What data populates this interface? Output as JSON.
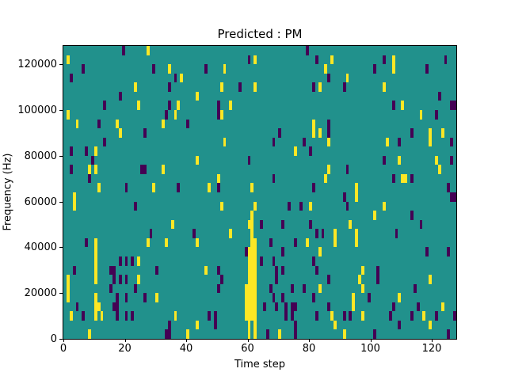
{
  "figure": {
    "background": "#ffffff",
    "text_color": "#000000"
  },
  "chart_data": {
    "type": "heatmap",
    "title": "Predicted : PM",
    "xlabel": "Time step",
    "ylabel": "Frequency (Hz)",
    "x_range": [
      0,
      128
    ],
    "y_range": [
      0,
      128000
    ],
    "x_ticks": [
      0,
      20,
      40,
      60,
      80,
      100,
      120
    ],
    "y_ticks": [
      0,
      20000,
      40000,
      60000,
      80000,
      100000,
      120000
    ],
    "grid_rows": 32,
    "grid_cols": 128,
    "legend": "none",
    "grid_lines": false,
    "colors": {
      "background": "#21918c",
      "p": "#440154",
      "y": "#fde725"
    },
    "color_meaning": {
      "background": "mid value (teal)",
      "p": "low value (dark purple)",
      "y": "high value (yellow)"
    },
    "cells": [
      [
        0,
        19,
        "p"
      ],
      [
        0,
        27,
        "y"
      ],
      [
        0,
        79,
        "p"
      ],
      [
        1,
        1,
        "y"
      ],
      [
        1,
        60,
        "p"
      ],
      [
        1,
        62,
        "y"
      ],
      [
        1,
        82,
        "p"
      ],
      [
        1,
        87,
        "y"
      ],
      [
        1,
        104,
        "p"
      ],
      [
        1,
        107,
        "y"
      ],
      [
        1,
        124,
        "p"
      ],
      [
        2,
        6,
        "p"
      ],
      [
        2,
        29,
        "p"
      ],
      [
        2,
        34,
        "y"
      ],
      [
        2,
        46,
        "p"
      ],
      [
        2,
        52,
        "y"
      ],
      [
        2,
        85,
        "y"
      ],
      [
        2,
        101,
        "p"
      ],
      [
        2,
        107,
        "y"
      ],
      [
        2,
        118,
        "p"
      ],
      [
        3,
        2,
        "p"
      ],
      [
        3,
        36,
        "p"
      ],
      [
        3,
        38,
        "y"
      ],
      [
        3,
        86,
        "p"
      ],
      [
        3,
        92,
        "y"
      ],
      [
        4,
        23,
        "y"
      ],
      [
        4,
        34,
        "p"
      ],
      [
        4,
        51,
        "y"
      ],
      [
        4,
        57,
        "p"
      ],
      [
        4,
        62,
        "y"
      ],
      [
        4,
        81,
        "p"
      ],
      [
        4,
        83,
        "y"
      ],
      [
        4,
        91,
        "p"
      ],
      [
        4,
        104,
        "y"
      ],
      [
        5,
        18,
        "p"
      ],
      [
        5,
        43,
        "y"
      ],
      [
        5,
        122,
        "p"
      ],
      [
        6,
        13,
        "p"
      ],
      [
        6,
        24,
        "y"
      ],
      [
        6,
        34,
        "p"
      ],
      [
        6,
        37,
        "y"
      ],
      [
        6,
        50,
        "p"
      ],
      [
        6,
        54,
        "y"
      ],
      [
        6,
        107,
        "p"
      ],
      [
        6,
        110,
        "y"
      ],
      [
        6,
        126,
        "p"
      ],
      [
        6,
        127,
        "p"
      ],
      [
        7,
        1,
        "y"
      ],
      [
        7,
        33,
        "p"
      ],
      [
        7,
        36,
        "y"
      ],
      [
        7,
        50,
        "p"
      ],
      [
        7,
        51,
        "y"
      ],
      [
        7,
        116,
        "y"
      ],
      [
        7,
        121,
        "p"
      ],
      [
        8,
        4,
        "y"
      ],
      [
        8,
        11,
        "p"
      ],
      [
        8,
        17,
        "y"
      ],
      [
        8,
        32,
        "y"
      ],
      [
        8,
        40,
        "p"
      ],
      [
        8,
        81,
        "y"
      ],
      [
        8,
        86,
        "p"
      ],
      [
        9,
        18,
        "y"
      ],
      [
        9,
        26,
        "p"
      ],
      [
        9,
        70,
        "p"
      ],
      [
        9,
        81,
        "y"
      ],
      [
        9,
        83,
        "y"
      ],
      [
        9,
        86,
        "p"
      ],
      [
        9,
        113,
        "p"
      ],
      [
        9,
        119,
        "y"
      ],
      [
        9,
        123,
        "y"
      ],
      [
        10,
        13,
        "p"
      ],
      [
        10,
        52,
        "y"
      ],
      [
        10,
        68,
        "p"
      ],
      [
        10,
        78,
        "p"
      ],
      [
        10,
        86,
        "y"
      ],
      [
        10,
        105,
        "y"
      ],
      [
        10,
        109,
        "p"
      ],
      [
        10,
        119,
        "y"
      ],
      [
        10,
        126,
        "p"
      ],
      [
        11,
        2,
        "p"
      ],
      [
        11,
        7,
        "p"
      ],
      [
        11,
        10,
        "y"
      ],
      [
        11,
        75,
        "y"
      ],
      [
        11,
        80,
        "p"
      ],
      [
        12,
        9,
        "p"
      ],
      [
        12,
        43,
        "y"
      ],
      [
        12,
        60,
        "p"
      ],
      [
        12,
        104,
        "p"
      ],
      [
        12,
        109,
        "y"
      ],
      [
        12,
        121,
        "y"
      ],
      [
        12,
        126,
        "p"
      ],
      [
        13,
        2,
        "p"
      ],
      [
        13,
        8,
        "y"
      ],
      [
        13,
        10,
        "y"
      ],
      [
        13,
        25,
        "p"
      ],
      [
        13,
        26,
        "p"
      ],
      [
        13,
        32,
        "y"
      ],
      [
        13,
        86,
        "y"
      ],
      [
        13,
        92,
        "p"
      ],
      [
        13,
        122,
        "y"
      ],
      [
        14,
        8,
        "p"
      ],
      [
        14,
        50,
        "y"
      ],
      [
        14,
        68,
        "p"
      ],
      [
        14,
        85,
        "y"
      ],
      [
        14,
        107,
        "p"
      ],
      [
        14,
        110,
        "y"
      ],
      [
        14,
        111,
        "y"
      ],
      [
        14,
        113,
        "p"
      ],
      [
        15,
        11,
        "y"
      ],
      [
        15,
        20,
        "p"
      ],
      [
        15,
        29,
        "y"
      ],
      [
        15,
        37,
        "p"
      ],
      [
        15,
        47,
        "y"
      ],
      [
        15,
        50,
        "p"
      ],
      [
        15,
        61,
        "y"
      ],
      [
        15,
        81,
        "p"
      ],
      [
        15,
        95,
        "y"
      ],
      [
        15,
        125,
        "p"
      ],
      [
        16,
        3,
        "y"
      ],
      [
        16,
        91,
        "p"
      ],
      [
        16,
        95,
        "y"
      ],
      [
        16,
        126,
        "p"
      ],
      [
        16,
        127,
        "p"
      ],
      [
        17,
        3,
        "y"
      ],
      [
        17,
        23,
        "p"
      ],
      [
        17,
        51,
        "y"
      ],
      [
        17,
        62,
        "y"
      ],
      [
        17,
        73,
        "p"
      ],
      [
        17,
        77,
        "p"
      ],
      [
        17,
        80,
        "y"
      ],
      [
        17,
        92,
        "p"
      ],
      [
        17,
        104,
        "y"
      ],
      [
        18,
        61,
        "y"
      ],
      [
        18,
        101,
        "y"
      ],
      [
        18,
        113,
        "p"
      ],
      [
        19,
        35,
        "y"
      ],
      [
        19,
        60,
        "y"
      ],
      [
        19,
        61,
        "y"
      ],
      [
        19,
        64,
        "p"
      ],
      [
        19,
        71,
        "p"
      ],
      [
        19,
        80,
        "p"
      ],
      [
        19,
        93,
        "y"
      ],
      [
        19,
        116,
        "p"
      ],
      [
        20,
        28,
        "p"
      ],
      [
        20,
        42,
        "p"
      ],
      [
        20,
        54,
        "y"
      ],
      [
        20,
        61,
        "y"
      ],
      [
        20,
        82,
        "p"
      ],
      [
        20,
        84,
        "p"
      ],
      [
        20,
        88,
        "y"
      ],
      [
        20,
        95,
        "y"
      ],
      [
        20,
        108,
        "p"
      ],
      [
        21,
        7,
        "p"
      ],
      [
        21,
        10,
        "y"
      ],
      [
        21,
        27,
        "y"
      ],
      [
        21,
        33,
        "y"
      ],
      [
        21,
        43,
        "y"
      ],
      [
        21,
        61,
        "y"
      ],
      [
        21,
        62,
        "y"
      ],
      [
        21,
        67,
        "p"
      ],
      [
        21,
        75,
        "p"
      ],
      [
        21,
        79,
        "y"
      ],
      [
        21,
        88,
        "y"
      ],
      [
        21,
        95,
        "y"
      ],
      [
        22,
        10,
        "y"
      ],
      [
        22,
        59,
        "p"
      ],
      [
        22,
        60,
        "y"
      ],
      [
        22,
        61,
        "y"
      ],
      [
        22,
        62,
        "y"
      ],
      [
        22,
        71,
        "p"
      ],
      [
        22,
        83,
        "y"
      ],
      [
        22,
        118,
        "p"
      ],
      [
        22,
        125,
        "p"
      ],
      [
        23,
        10,
        "y"
      ],
      [
        23,
        18,
        "p"
      ],
      [
        23,
        20,
        "p"
      ],
      [
        23,
        22,
        "p"
      ],
      [
        23,
        24,
        "y"
      ],
      [
        23,
        60,
        "y"
      ],
      [
        23,
        61,
        "y"
      ],
      [
        23,
        62,
        "y"
      ],
      [
        23,
        64,
        "p"
      ],
      [
        23,
        68,
        "p"
      ],
      [
        23,
        81,
        "p"
      ],
      [
        24,
        3,
        "p"
      ],
      [
        24,
        10,
        "y"
      ],
      [
        24,
        15,
        "p"
      ],
      [
        24,
        16,
        "p"
      ],
      [
        24,
        30,
        "p"
      ],
      [
        24,
        46,
        "y"
      ],
      [
        24,
        50,
        "p"
      ],
      [
        24,
        60,
        "y"
      ],
      [
        24,
        61,
        "y"
      ],
      [
        24,
        62,
        "y"
      ],
      [
        24,
        69,
        "p"
      ],
      [
        24,
        71,
        "p"
      ],
      [
        24,
        82,
        "p"
      ],
      [
        24,
        97,
        "y"
      ],
      [
        24,
        102,
        "p"
      ],
      [
        25,
        1,
        "y"
      ],
      [
        25,
        10,
        "y"
      ],
      [
        25,
        16,
        "p"
      ],
      [
        25,
        18,
        "p"
      ],
      [
        25,
        20,
        "p"
      ],
      [
        25,
        24,
        "y"
      ],
      [
        25,
        51,
        "p"
      ],
      [
        25,
        60,
        "y"
      ],
      [
        25,
        61,
        "y"
      ],
      [
        25,
        62,
        "y"
      ],
      [
        25,
        69,
        "p"
      ],
      [
        25,
        86,
        "p"
      ],
      [
        25,
        96,
        "y"
      ],
      [
        25,
        102,
        "p"
      ],
      [
        25,
        119,
        "y"
      ],
      [
        26,
        1,
        "y"
      ],
      [
        26,
        15,
        "p"
      ],
      [
        26,
        23,
        "p"
      ],
      [
        26,
        50,
        "p"
      ],
      [
        26,
        59,
        "y"
      ],
      [
        26,
        60,
        "y"
      ],
      [
        26,
        61,
        "y"
      ],
      [
        26,
        62,
        "y"
      ],
      [
        26,
        67,
        "p"
      ],
      [
        26,
        74,
        "p"
      ],
      [
        26,
        78,
        "p"
      ],
      [
        26,
        83,
        "y"
      ],
      [
        26,
        97,
        "y"
      ],
      [
        26,
        114,
        "p"
      ],
      [
        27,
        1,
        "y"
      ],
      [
        27,
        10,
        "y"
      ],
      [
        27,
        17,
        "p"
      ],
      [
        27,
        20,
        "p"
      ],
      [
        27,
        26,
        "p"
      ],
      [
        27,
        30,
        "y"
      ],
      [
        27,
        59,
        "y"
      ],
      [
        27,
        60,
        "y"
      ],
      [
        27,
        61,
        "y"
      ],
      [
        27,
        62,
        "y"
      ],
      [
        27,
        68,
        "p"
      ],
      [
        27,
        71,
        "p"
      ],
      [
        27,
        81,
        "p"
      ],
      [
        27,
        94,
        "y"
      ],
      [
        27,
        99,
        "p"
      ],
      [
        27,
        109,
        "y"
      ],
      [
        28,
        4,
        "p"
      ],
      [
        28,
        10,
        "y"
      ],
      [
        28,
        11,
        "y"
      ],
      [
        28,
        16,
        "p"
      ],
      [
        28,
        17,
        "p"
      ],
      [
        28,
        59,
        "y"
      ],
      [
        28,
        60,
        "y"
      ],
      [
        28,
        61,
        "y"
      ],
      [
        28,
        62,
        "y"
      ],
      [
        28,
        65,
        "p"
      ],
      [
        28,
        69,
        "p"
      ],
      [
        28,
        72,
        "p"
      ],
      [
        28,
        74,
        "p"
      ],
      [
        28,
        75,
        "p"
      ],
      [
        28,
        86,
        "p"
      ],
      [
        28,
        94,
        "y"
      ],
      [
        28,
        107,
        "p"
      ],
      [
        28,
        115,
        "p"
      ],
      [
        28,
        123,
        "y"
      ],
      [
        29,
        2,
        "y"
      ],
      [
        29,
        6,
        "p"
      ],
      [
        29,
        10,
        "y"
      ],
      [
        29,
        12,
        "y"
      ],
      [
        29,
        17,
        "p"
      ],
      [
        29,
        20,
        "p"
      ],
      [
        29,
        22,
        "p"
      ],
      [
        29,
        36,
        "y"
      ],
      [
        29,
        47,
        "p"
      ],
      [
        29,
        49,
        "p"
      ],
      [
        29,
        59,
        "y"
      ],
      [
        29,
        60,
        "y"
      ],
      [
        29,
        61,
        "y"
      ],
      [
        29,
        62,
        "y"
      ],
      [
        29,
        72,
        "p"
      ],
      [
        29,
        74,
        "p"
      ],
      [
        29,
        82,
        "p"
      ],
      [
        29,
        87,
        "y"
      ],
      [
        29,
        91,
        "p"
      ],
      [
        29,
        93,
        "p"
      ],
      [
        29,
        97,
        "y"
      ],
      [
        29,
        106,
        "p"
      ],
      [
        29,
        113,
        "p"
      ],
      [
        29,
        117,
        "y"
      ],
      [
        29,
        121,
        "p"
      ],
      [
        29,
        127,
        "p"
      ],
      [
        30,
        34,
        "p"
      ],
      [
        30,
        43,
        "y"
      ],
      [
        30,
        49,
        "p"
      ],
      [
        30,
        60,
        "y"
      ],
      [
        30,
        62,
        "y"
      ],
      [
        30,
        75,
        "p"
      ],
      [
        30,
        88,
        "y"
      ],
      [
        30,
        109,
        "p"
      ],
      [
        30,
        119,
        "y"
      ],
      [
        31,
        8,
        "y"
      ],
      [
        31,
        33,
        "p"
      ],
      [
        31,
        34,
        "p"
      ],
      [
        31,
        40,
        "y"
      ],
      [
        31,
        60,
        "y"
      ],
      [
        31,
        62,
        "y"
      ],
      [
        31,
        66,
        "p"
      ],
      [
        31,
        70,
        "y"
      ],
      [
        31,
        75,
        "p"
      ],
      [
        31,
        91,
        "y"
      ],
      [
        31,
        101,
        "p"
      ],
      [
        31,
        125,
        "p"
      ]
    ]
  }
}
